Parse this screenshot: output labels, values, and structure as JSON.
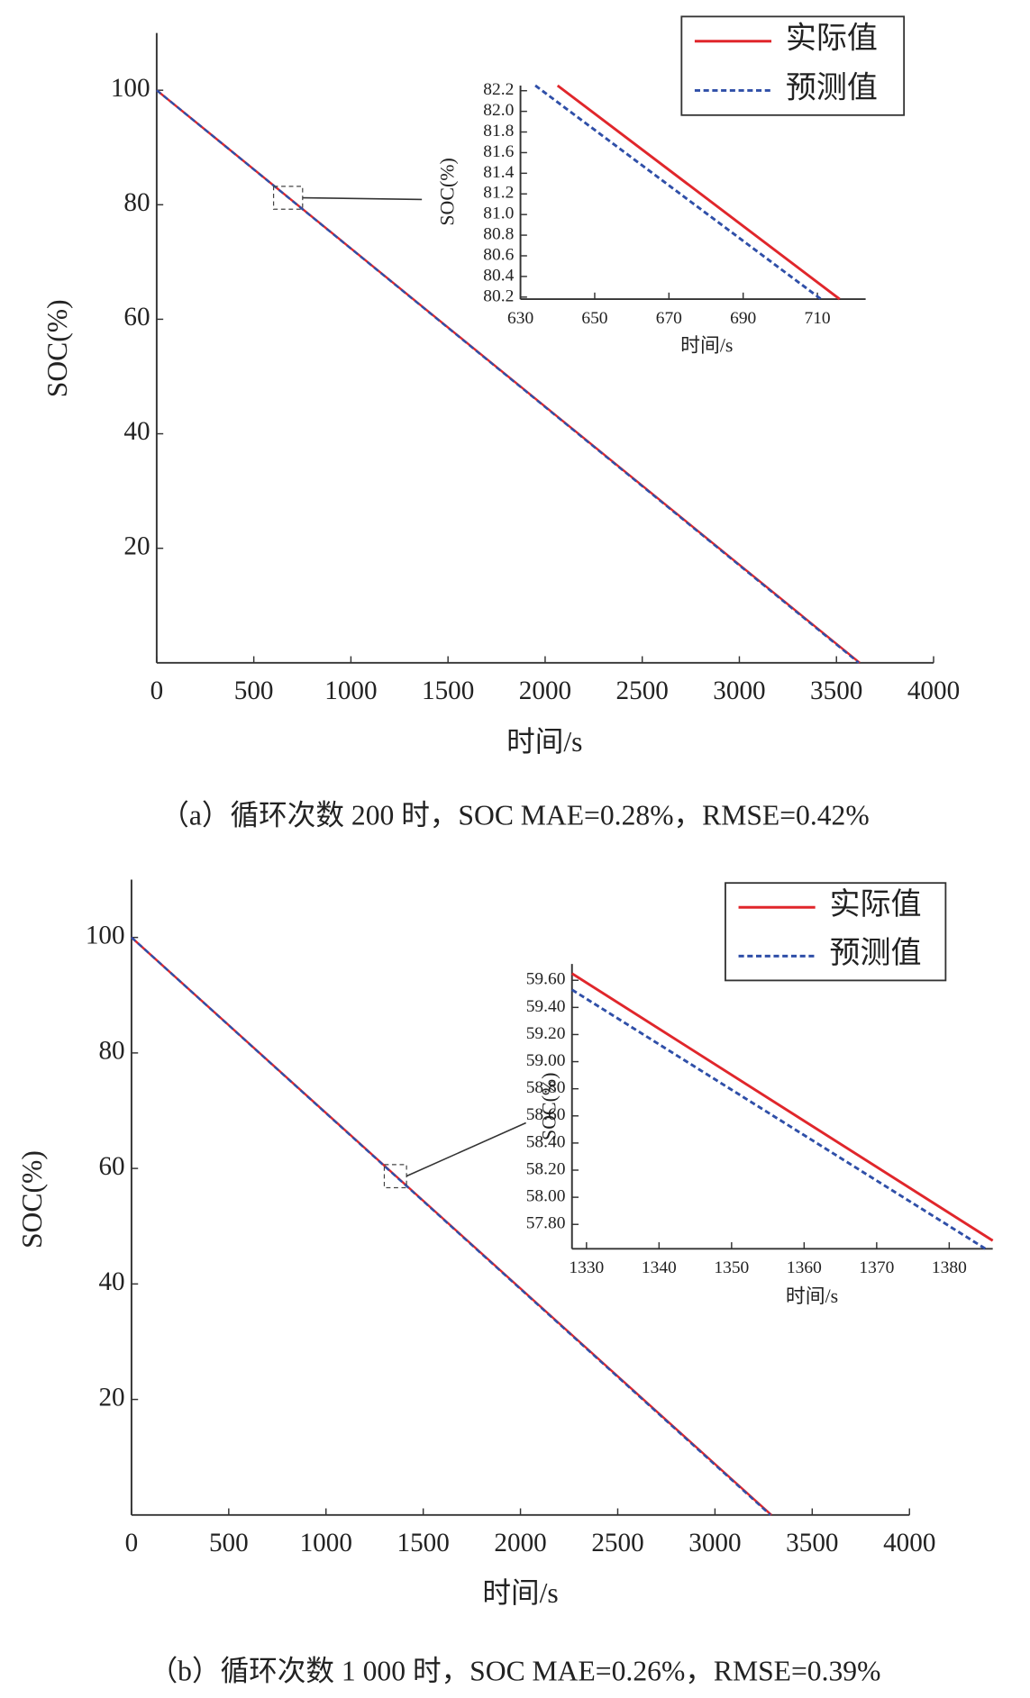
{
  "chart_data": [
    {
      "type": "line",
      "caption": "（a）循环次数 200 时，SOC MAE=0.28%，RMSE=0.42%",
      "x_label": "时间/s",
      "y_label": "SOC(%)",
      "legend": "upper right",
      "xlim": [
        0,
        4000
      ],
      "xticks": [
        0,
        500,
        1000,
        1500,
        2000,
        2500,
        3000,
        3500,
        4000
      ],
      "ylim": [
        0,
        110
      ],
      "yticks": [
        20,
        40,
        60,
        80,
        100
      ],
      "series": [
        {
          "name": "实际值",
          "color": "#e0262b",
          "style": "solid",
          "x": [
            0,
            3620
          ],
          "values": [
            100,
            0
          ]
        },
        {
          "name": "预测值",
          "color": "#2f4fa8",
          "style": "dashed",
          "x": [
            0,
            3615
          ],
          "values": [
            100,
            0
          ]
        }
      ]
    },
    {
      "type": "line",
      "x_label": "时间/s",
      "y_label": "SOC(%)",
      "xlim": [
        630,
        723
      ],
      "xticks": [
        630,
        650,
        670,
        690,
        710
      ],
      "ylim": [
        80.18,
        82.25
      ],
      "yticks": [
        80.2,
        80.4,
        80.6,
        80.8,
        {
          "value": 81,
          "label": "81.0"
        },
        81.2,
        81.4,
        81.6,
        81.8,
        {
          "value": 82,
          "label": "82.0"
        },
        82.2
      ],
      "series": [
        {
          "color": "#e0262b",
          "style": "solid",
          "x": [
            640,
            716
          ],
          "values": [
            82.25,
            80.18
          ]
        },
        {
          "color": "#2f4fa8",
          "style": "dashed",
          "x": [
            634,
            711
          ],
          "values": [
            82.25,
            80.18
          ]
        }
      ]
    },
    {
      "type": "line",
      "caption": "（b）循环次数 1 000 时，SOC MAE=0.26%，RMSE=0.39%",
      "x_label": "时间/s",
      "y_label": "SOC(%)",
      "legend": "upper right",
      "xlim": [
        0,
        4000
      ],
      "xticks": [
        0,
        500,
        1000,
        1500,
        2000,
        2500,
        3000,
        3500,
        4000
      ],
      "ylim": [
        0,
        110
      ],
      "yticks": [
        20,
        40,
        60,
        80,
        100
      ],
      "series": [
        {
          "name": "实际值",
          "color": "#e0262b",
          "style": "solid",
          "x": [
            0,
            3290
          ],
          "values": [
            100,
            0
          ]
        },
        {
          "name": "预测值",
          "color": "#2f4fa8",
          "style": "dashed",
          "x": [
            0,
            3285
          ],
          "values": [
            100,
            0
          ]
        }
      ]
    },
    {
      "type": "line",
      "x_label": "时间/s",
      "y_label": "SOC(%)",
      "xlim": [
        1328,
        1386
      ],
      "xticks": [
        1330,
        1340,
        1350,
        1360,
        1370,
        1380
      ],
      "ylim": [
        57.62,
        59.72
      ],
      "yticks": [
        {
          "value": 57.8,
          "label": "57.80"
        },
        {
          "value": 58,
          "label": "58.00"
        },
        {
          "value": 58.2,
          "label": "58.20"
        },
        {
          "value": 58.4,
          "label": "58.40"
        },
        {
          "value": 58.6,
          "label": "58.60"
        },
        {
          "value": 58.8,
          "label": "58.80"
        },
        {
          "value": 59,
          "label": "59.00"
        },
        {
          "value": 59.2,
          "label": "59.20"
        },
        {
          "value": 59.4,
          "label": "59.40"
        },
        {
          "value": 59.6,
          "label": "59.60"
        }
      ],
      "series": [
        {
          "color": "#e0262b",
          "style": "solid",
          "x": [
            1328,
            1386
          ],
          "values": [
            59.65,
            57.68
          ]
        },
        {
          "color": "#2f4fa8",
          "style": "dashed",
          "x": [
            1328,
            1385
          ],
          "values": [
            59.53,
            57.62
          ]
        }
      ]
    }
  ]
}
